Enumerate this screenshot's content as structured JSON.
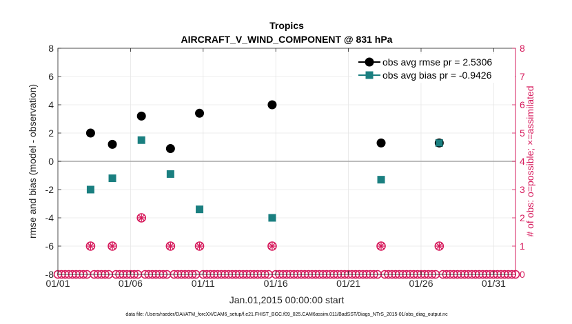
{
  "chart_data": {
    "type": "scatter",
    "title": "Tropics",
    "subtitle": "AIRCRAFT_V_WIND_COMPONENT @ 831 hPa",
    "xlabel": "Jan.01,2015 00:00:00 start",
    "ylabel": "rmse and bias (model - observation)",
    "ylabel_right": "# of obs: o=possible; ×=assimilated",
    "footer": "data file: /Users/raeder/DAI/ATM_forcXX/CAM6_setup/f.e21.FHIST_BGC.f09_025.CAM6assim.011/BadSST/Diags_NTrS_2015-01/obs_diag_output.nc",
    "xlim": [
      1,
      32.5
    ],
    "ylim": [
      -8,
      8
    ],
    "ylim_right": [
      0,
      8
    ],
    "x_ticks": [
      1,
      6,
      11,
      16,
      21,
      26,
      31
    ],
    "x_tick_labels": [
      "01/01",
      "01/06",
      "01/11",
      "01/16",
      "01/21",
      "01/26",
      "01/31"
    ],
    "y_ticks": [
      -8,
      -6,
      -4,
      -2,
      0,
      2,
      4,
      6,
      8
    ],
    "y_tick_labels": [
      "-8",
      "-6",
      "-4",
      "-2",
      "0",
      "2",
      "4",
      "6",
      "8"
    ],
    "y_right_ticks": [
      0,
      1,
      2,
      3,
      4,
      5,
      6,
      7,
      8
    ],
    "y_right_tick_labels": [
      "0",
      "1",
      "2",
      "3",
      "4",
      "5",
      "6",
      "7",
      "8"
    ],
    "grid": true,
    "legend_position": "top-right",
    "series": [
      {
        "name": "obs avg rmse pr = 2.5306",
        "marker": "circle",
        "color": "#000000",
        "x": [
          3.25,
          4.75,
          6.75,
          8.75,
          10.75,
          15.75,
          23.25,
          27.25
        ],
        "y": [
          2.0,
          1.2,
          3.2,
          0.9,
          3.4,
          4.0,
          1.3,
          1.3
        ]
      },
      {
        "name": "obs avg bias pr = -0.9426",
        "marker": "square",
        "color": "#1a7f80",
        "x": [
          3.25,
          4.75,
          6.75,
          8.75,
          10.75,
          15.75,
          23.25,
          27.25
        ],
        "y": [
          -2.0,
          -1.2,
          1.5,
          -0.9,
          -3.4,
          -4.0,
          -1.3,
          1.3
        ]
      },
      {
        "name": "obs possible",
        "marker": "circle-open",
        "color": "#d6195b",
        "axis": "right",
        "x": [
          3.25,
          4.75,
          6.75,
          8.75,
          10.75,
          15.75,
          23.25,
          27.25
        ],
        "y": [
          1,
          1,
          2,
          1,
          1,
          1,
          1,
          1
        ]
      },
      {
        "name": "obs assimilated",
        "marker": "x",
        "color": "#d6195b",
        "axis": "right",
        "x": [
          3.25,
          4.75,
          6.75,
          8.75,
          10.75,
          15.75,
          23.25,
          27.25
        ],
        "y": [
          1,
          1,
          2,
          1,
          1,
          1,
          1,
          1
        ]
      },
      {
        "name": "no obs",
        "marker": "circle-open",
        "color": "#d6195b",
        "axis": "right",
        "note": "zero-count bins every quarter day",
        "x_start": 1.0,
        "x_end": 32.5,
        "x_step": 0.25,
        "y": 0
      }
    ]
  }
}
